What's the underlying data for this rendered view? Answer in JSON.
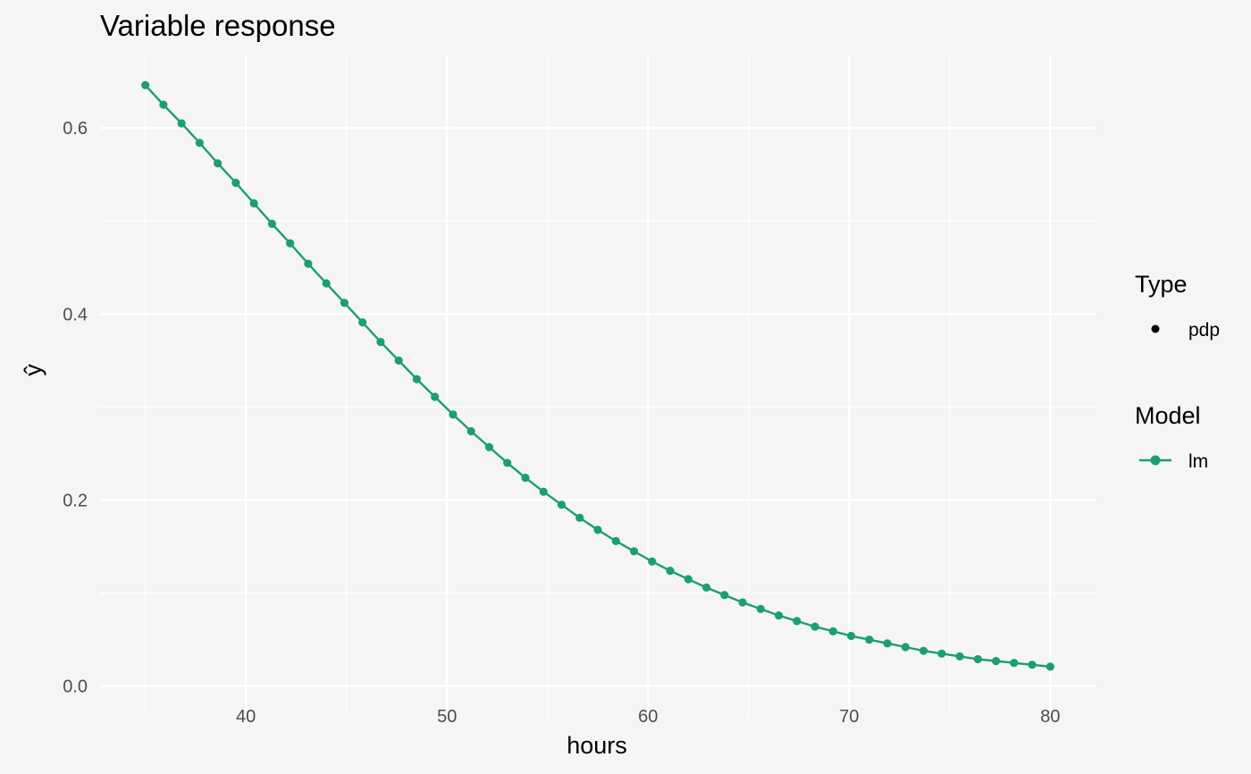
{
  "chart_data": {
    "type": "line",
    "title": "Variable response",
    "xlabel": "hours",
    "ylabel": "ŷ",
    "xlim": [
      32.75,
      82.25
    ],
    "ylim": [
      -0.031,
      0.678
    ],
    "x_ticks": [
      40,
      50,
      60,
      70,
      80
    ],
    "y_ticks": [
      0.0,
      0.2,
      0.4,
      0.6
    ],
    "x_tick_labels": [
      "40",
      "50",
      "60",
      "70",
      "80"
    ],
    "y_tick_labels": [
      "0.0",
      "0.2",
      "0.4",
      "0.6"
    ],
    "grid": true,
    "legend_placement": "right",
    "legends": [
      {
        "title": "Type",
        "items": [
          {
            "label": "pdp",
            "symbol": "point",
            "color": "#000000"
          }
        ]
      },
      {
        "title": "Model",
        "items": [
          {
            "label": "lm",
            "symbol": "line-point",
            "color": "#1b9e77"
          }
        ]
      }
    ],
    "series": [
      {
        "name": "lm",
        "color": "#1b9e77",
        "x": [
          35.0,
          35.9,
          36.8,
          37.7,
          38.6,
          39.5,
          40.4,
          41.3,
          42.2,
          43.1,
          44.0,
          44.9,
          45.8,
          46.7,
          47.6,
          48.5,
          49.4,
          50.3,
          51.2,
          52.1,
          53.0,
          53.9,
          54.8,
          55.7,
          56.6,
          57.5,
          58.4,
          59.3,
          60.2,
          61.1,
          62.0,
          62.9,
          63.8,
          64.7,
          65.6,
          66.5,
          67.4,
          68.3,
          69.2,
          70.1,
          71.0,
          71.9,
          72.8,
          73.7,
          74.6,
          75.5,
          76.4,
          77.3,
          78.2,
          79.1,
          80.0
        ],
        "y": [
          0.646,
          0.625,
          0.605,
          0.584,
          0.562,
          0.541,
          0.519,
          0.497,
          0.476,
          0.454,
          0.433,
          0.412,
          0.391,
          0.37,
          0.35,
          0.33,
          0.311,
          0.292,
          0.274,
          0.257,
          0.24,
          0.224,
          0.209,
          0.195,
          0.181,
          0.168,
          0.156,
          0.145,
          0.134,
          0.124,
          0.115,
          0.106,
          0.098,
          0.09,
          0.083,
          0.076,
          0.07,
          0.064,
          0.059,
          0.054,
          0.05,
          0.046,
          0.042,
          0.038,
          0.035,
          0.032,
          0.029,
          0.027,
          0.025,
          0.023,
          0.021
        ]
      }
    ]
  }
}
